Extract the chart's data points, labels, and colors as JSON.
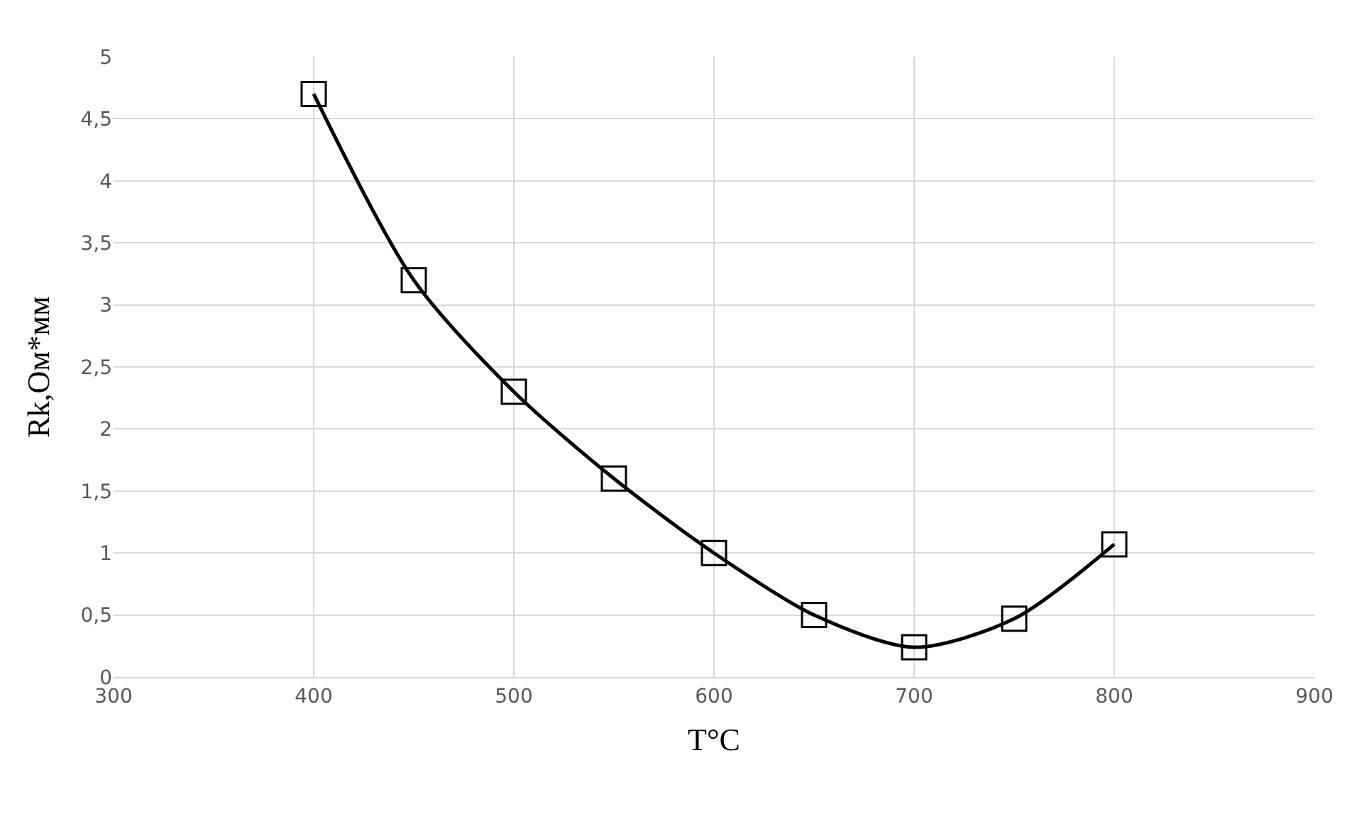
{
  "chart_data": {
    "type": "line",
    "xlabel": "T°C",
    "ylabel": "Rk,Ом*мм",
    "x": [
      400,
      450,
      500,
      550,
      600,
      650,
      700,
      750,
      800
    ],
    "series": [
      {
        "color": "#000000",
        "values": [
          4.7,
          3.2,
          2.3,
          1.6,
          1.0,
          0.5,
          0.24,
          0.47,
          1.07
        ]
      }
    ],
    "xlim": [
      300,
      900
    ],
    "xticks": [
      300,
      400,
      500,
      600,
      700,
      800,
      900
    ],
    "ylim": [
      0,
      5
    ],
    "yticks": [
      0,
      {
        "value": 0.5,
        "label": "0,5"
      },
      1,
      {
        "value": 1.5,
        "label": "1,5"
      },
      2,
      {
        "value": 2.5,
        "label": "2,5"
      },
      3,
      {
        "value": 3.5,
        "label": "3,5"
      },
      4,
      {
        "value": 4.5,
        "label": "4,5"
      },
      5
    ],
    "grid": true,
    "marker": "square",
    "line_style": "solid"
  }
}
